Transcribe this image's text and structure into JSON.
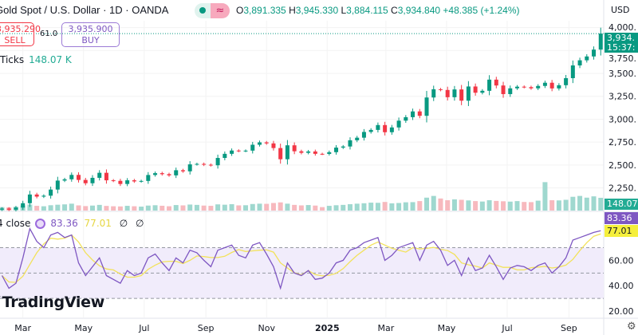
{
  "header": {
    "title": "Gold Spot / U.S. Dollar · 1D · OANDA",
    "status_icons": [
      "market-open-dot-icon",
      "delayed-wave-icon"
    ],
    "ohlc": {
      "open_label": "O",
      "open": "3,891.335",
      "high_label": "H",
      "high": "3,945.330",
      "low_label": "L",
      "low": "3,884.115",
      "close_label": "C",
      "close": "3,934.840",
      "change": "+48.385 (+1.24%)"
    },
    "currency": "USD"
  },
  "trade": {
    "sell_price": "3,935.290",
    "sell_label": "SELL",
    "spread": "61.0",
    "buy_price": "3,935.900",
    "buy_label": "BUY"
  },
  "volume_legend": {
    "label": "Ticks",
    "value": "148.07 K"
  },
  "rsi_legend": {
    "label": "4 close",
    "rsi": "83.36",
    "ma": "77.01",
    "extra1": "∅",
    "extra2": "∅"
  },
  "logo": "TradingView",
  "price_tags": {
    "last_price": "3,934.",
    "countdown": "15:37:",
    "volume": "148.07",
    "rsi": "83.36",
    "rsi_ma": "77.01"
  },
  "colors": {
    "up": "#089981",
    "down": "#f23645",
    "rsi": "#7e57c2",
    "rsi_ma": "#f2e25b",
    "rsi_band": "#f1ecfb",
    "vol_up": "#9fd8cf",
    "vol_down": "#f7b9be"
  },
  "chart_data": {
    "type": "candlestick",
    "price_axis": {
      "ticks": [
        2250,
        2500,
        2750,
        3000,
        3250,
        3500,
        3750,
        4000
      ],
      "tick_labels": [
        "2,250.",
        "2,500.",
        "2,750.",
        "3,000.",
        "3,250.",
        "3,500.",
        "3,750.",
        "4,000."
      ],
      "range": [
        2020,
        4040
      ]
    },
    "rsi_axis": {
      "ticks": [
        20,
        40,
        60
      ],
      "tick_labels": [
        "20.00",
        "40.00",
        "60.00"
      ],
      "bands": [
        70,
        50,
        30
      ],
      "range": [
        15,
        98
      ]
    },
    "time_axis": {
      "labels": [
        {
          "date": "2024-03-01",
          "label": "Mar"
        },
        {
          "date": "2024-05-01",
          "label": "May"
        },
        {
          "date": "2024-07-01",
          "label": "Jul"
        },
        {
          "date": "2024-09-01",
          "label": "Sep"
        },
        {
          "date": "2024-11-01",
          "label": "Nov"
        },
        {
          "date": "2025-01-01",
          "label": "2025"
        },
        {
          "date": "2025-03-01",
          "label": "Mar"
        },
        {
          "date": "2025-05-01",
          "label": "May"
        },
        {
          "date": "2025-07-01",
          "label": "Jul"
        },
        {
          "date": "2025-09-01",
          "label": "Sep"
        }
      ],
      "range": [
        "2024-02-07",
        "2025-10-06"
      ]
    },
    "dates": [
      "2024-02-09",
      "2024-02-16",
      "2024-02-23",
      "2024-03-01",
      "2024-03-08",
      "2024-03-15",
      "2024-03-22",
      "2024-03-29",
      "2024-04-05",
      "2024-04-12",
      "2024-04-19",
      "2024-04-26",
      "2024-05-03",
      "2024-05-10",
      "2024-05-17",
      "2024-05-24",
      "2024-05-31",
      "2024-06-07",
      "2024-06-14",
      "2024-06-21",
      "2024-06-28",
      "2024-07-05",
      "2024-07-12",
      "2024-07-19",
      "2024-07-26",
      "2024-08-02",
      "2024-08-09",
      "2024-08-16",
      "2024-08-23",
      "2024-08-30",
      "2024-09-06",
      "2024-09-13",
      "2024-09-20",
      "2024-09-27",
      "2024-10-04",
      "2024-10-11",
      "2024-10-18",
      "2024-10-25",
      "2024-11-01",
      "2024-11-08",
      "2024-11-15",
      "2024-11-22",
      "2024-11-29",
      "2024-12-06",
      "2024-12-13",
      "2024-12-20",
      "2024-12-27",
      "2025-01-03",
      "2025-01-10",
      "2025-01-17",
      "2025-01-24",
      "2025-01-31",
      "2025-02-07",
      "2025-02-14",
      "2025-02-21",
      "2025-02-28",
      "2025-03-07",
      "2025-03-14",
      "2025-03-21",
      "2025-03-28",
      "2025-04-04",
      "2025-04-11",
      "2025-04-18",
      "2025-04-25",
      "2025-05-02",
      "2025-05-09",
      "2025-05-16",
      "2025-05-23",
      "2025-05-30",
      "2025-06-06",
      "2025-06-13",
      "2025-06-20",
      "2025-06-27",
      "2025-07-04",
      "2025-07-11",
      "2025-07-18",
      "2025-07-25",
      "2025-08-01",
      "2025-08-08",
      "2025-08-15",
      "2025-08-22",
      "2025-08-29",
      "2025-09-05",
      "2025-09-12",
      "2025-09-19",
      "2025-09-26",
      "2025-10-03"
    ],
    "close": [
      2024,
      2013,
      2035,
      2083,
      2178,
      2155,
      2165,
      2232,
      2330,
      2344,
      2392,
      2337,
      2301,
      2360,
      2415,
      2333,
      2327,
      2293,
      2333,
      2321,
      2326,
      2391,
      2411,
      2400,
      2387,
      2443,
      2431,
      2507,
      2512,
      2503,
      2497,
      2577,
      2622,
      2658,
      2653,
      2657,
      2721,
      2747,
      2736,
      2685,
      2563,
      2715,
      2650,
      2633,
      2648,
      2622,
      2621,
      2640,
      2690,
      2702,
      2770,
      2798,
      2861,
      2883,
      2936,
      2858,
      2910,
      2984,
      3022,
      3085,
      3037,
      3237,
      3327,
      3319,
      3240,
      3325,
      3202,
      3357,
      3289,
      3310,
      3432,
      3368,
      3274,
      3337,
      3355,
      3350,
      3337,
      3363,
      3398,
      3336,
      3371,
      3448,
      3587,
      3643,
      3685,
      3760,
      3934.84
    ],
    "volume_k": [
      40,
      38,
      45,
      60,
      70,
      55,
      50,
      62,
      68,
      72,
      80,
      60,
      52,
      58,
      66,
      54,
      50,
      48,
      55,
      50,
      46,
      58,
      62,
      56,
      50,
      64,
      60,
      70,
      66,
      58,
      55,
      72,
      68,
      74,
      60,
      62,
      76,
      80,
      78,
      88,
      95,
      80,
      66,
      60,
      64,
      58,
      40,
      55,
      62,
      66,
      74,
      80,
      85,
      92,
      90,
      100,
      84,
      88,
      96,
      98,
      110,
      150,
      170,
      140,
      120,
      130,
      125,
      118,
      110,
      105,
      120,
      112,
      108,
      104,
      110,
      100,
      98,
      115,
      330,
      120,
      118,
      125,
      160,
      170,
      150,
      165,
      148.07
    ],
    "rsi": [
      48,
      38,
      42,
      62,
      85,
      75,
      70,
      80,
      82,
      78,
      80,
      58,
      48,
      55,
      62,
      48,
      45,
      42,
      52,
      48,
      50,
      62,
      65,
      58,
      52,
      62,
      58,
      68,
      66,
      60,
      55,
      68,
      70,
      72,
      64,
      62,
      72,
      74,
      65,
      55,
      38,
      58,
      50,
      48,
      52,
      45,
      46,
      50,
      58,
      60,
      68,
      70,
      74,
      76,
      78,
      60,
      64,
      70,
      72,
      74,
      60,
      72,
      75,
      68,
      56,
      60,
      48,
      62,
      52,
      54,
      64,
      55,
      45,
      54,
      56,
      55,
      52,
      56,
      58,
      50,
      55,
      62,
      76,
      78,
      80,
      82,
      83.36
    ]
  }
}
